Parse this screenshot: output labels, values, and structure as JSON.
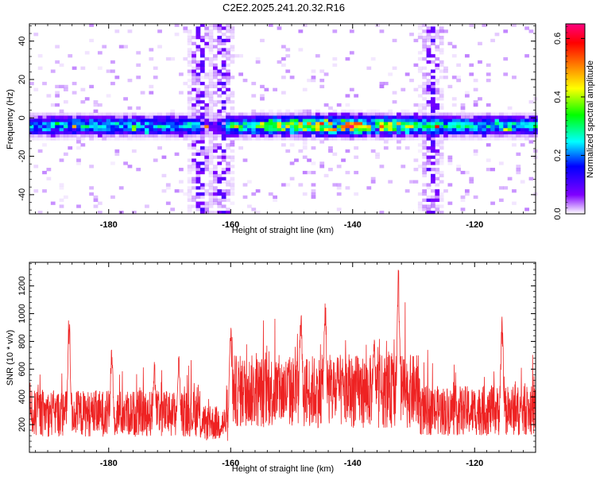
{
  "title": "C2E2.2025.241.20.32.R16",
  "chart_data": [
    {
      "type": "heatmap",
      "xlabel": "Height of straight line (km)",
      "ylabel": "Frequency (Hz)",
      "xlim": [
        -193,
        -110
      ],
      "ylim": [
        -50,
        49
      ],
      "xticks": [
        -180,
        -160,
        -140,
        -120
      ],
      "xtick_labels": [
        "-180",
        "-160",
        "-140",
        "-120"
      ],
      "yticks": [
        -40,
        -20,
        0,
        20,
        40
      ],
      "ytick_labels": [
        "-40",
        "-20",
        "0",
        "20",
        "40"
      ],
      "colorbar": {
        "label": "Normalized spectral amplitude",
        "range": [
          0.0,
          0.65
        ],
        "ticks": [
          0.0,
          0.2,
          0.4,
          0.6
        ],
        "tick_labels": [
          "0.0",
          "0.2",
          "0.4",
          "0.6"
        ],
        "colors": [
          "#ffffff",
          "#8000ff",
          "#0000ff",
          "#00ffff",
          "#00ff00",
          "#ffff00",
          "#ff8000",
          "#ff0000",
          "#ff0080"
        ]
      },
      "band": {
        "center_freq_hz": -4,
        "half_width_hz": 6,
        "peak_height_km": -143,
        "peak_amplitude": 0.6
      },
      "vertical_streaks_km": [
        -165,
        -161.5,
        -127
      ]
    },
    {
      "type": "line",
      "xlabel": "Height of straight line (km)",
      "ylabel": "SNR (10 * v/v)",
      "xlim": [
        -193,
        -110
      ],
      "ylim": [
        0,
        1370
      ],
      "xticks": [
        -180,
        -160,
        -140,
        -120
      ],
      "xtick_labels": [
        "-180",
        "-160",
        "-140",
        "-120"
      ],
      "yticks": [
        200,
        400,
        600,
        800,
        1000,
        1200
      ],
      "ytick_labels": [
        "200",
        "400",
        "600",
        "800",
        "1000",
        "1200"
      ],
      "color": "#ee2222",
      "peaks": [
        {
          "x": -186.5,
          "y": 1020
        },
        {
          "x": -179.5,
          "y": 800
        },
        {
          "x": -172.5,
          "y": 660
        },
        {
          "x": -168.5,
          "y": 740
        },
        {
          "x": -160,
          "y": 960
        },
        {
          "x": -148.5,
          "y": 1110
        },
        {
          "x": -144.5,
          "y": 1170
        },
        {
          "x": -136.5,
          "y": 880
        },
        {
          "x": -132.5,
          "y": 1360
        },
        {
          "x": -115.5,
          "y": 1030
        }
      ],
      "baseline_segments": [
        {
          "from": -193,
          "to": -165,
          "mean": 280
        },
        {
          "from": -165,
          "to": -160,
          "mean": 210
        },
        {
          "from": -160,
          "to": -129,
          "mean": 440
        },
        {
          "from": -129,
          "to": -110,
          "mean": 300
        }
      ]
    }
  ]
}
